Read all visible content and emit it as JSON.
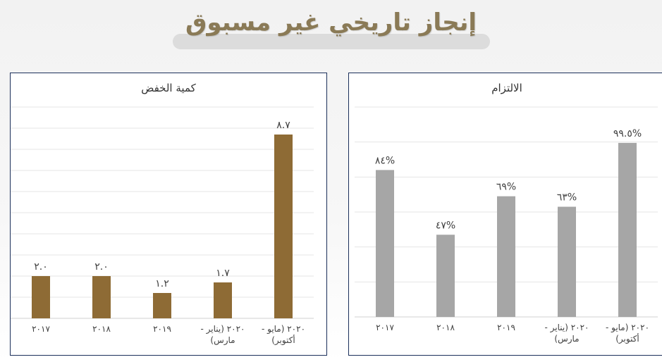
{
  "page": {
    "title": "إنجاز تاريخي غير مسبوق"
  },
  "colors": {
    "gold": "#8e6b35",
    "gray": "#a6a6a6",
    "border": "#1b2f5a"
  },
  "chart_data": [
    {
      "type": "bar",
      "title": "كمية الخفض",
      "categories": [
        "٢٠١٧",
        "٢٠١٨",
        "٢٠١٩",
        "٢٠٢٠ (يناير - مارس)",
        "٢٠٢٠ (مايو - أكتوبر)"
      ],
      "values": [
        2.0,
        2.0,
        1.2,
        1.7,
        8.7
      ],
      "value_labels": [
        "٢.٠",
        "٢.٠",
        "١.٢",
        "١.٧",
        "٨.٧"
      ],
      "ylim": [
        0,
        10
      ],
      "grid": true,
      "color": "#8e6b35"
    },
    {
      "type": "bar",
      "title": "الالتزام",
      "categories": [
        "٢٠١٧",
        "٢٠١٨",
        "٢٠١٩",
        "٢٠٢٠ (يناير - مارس)",
        "٢٠٢٠ (مايو - أكتوبر)"
      ],
      "values": [
        84,
        47,
        69,
        63,
        99.5
      ],
      "value_labels": [
        "٨٤%",
        "٤٧%",
        "٦٩%",
        "٦٣%",
        "٩٩.٥%"
      ],
      "ylim": [
        0,
        120
      ],
      "grid": true,
      "color": "#a6a6a6"
    }
  ]
}
